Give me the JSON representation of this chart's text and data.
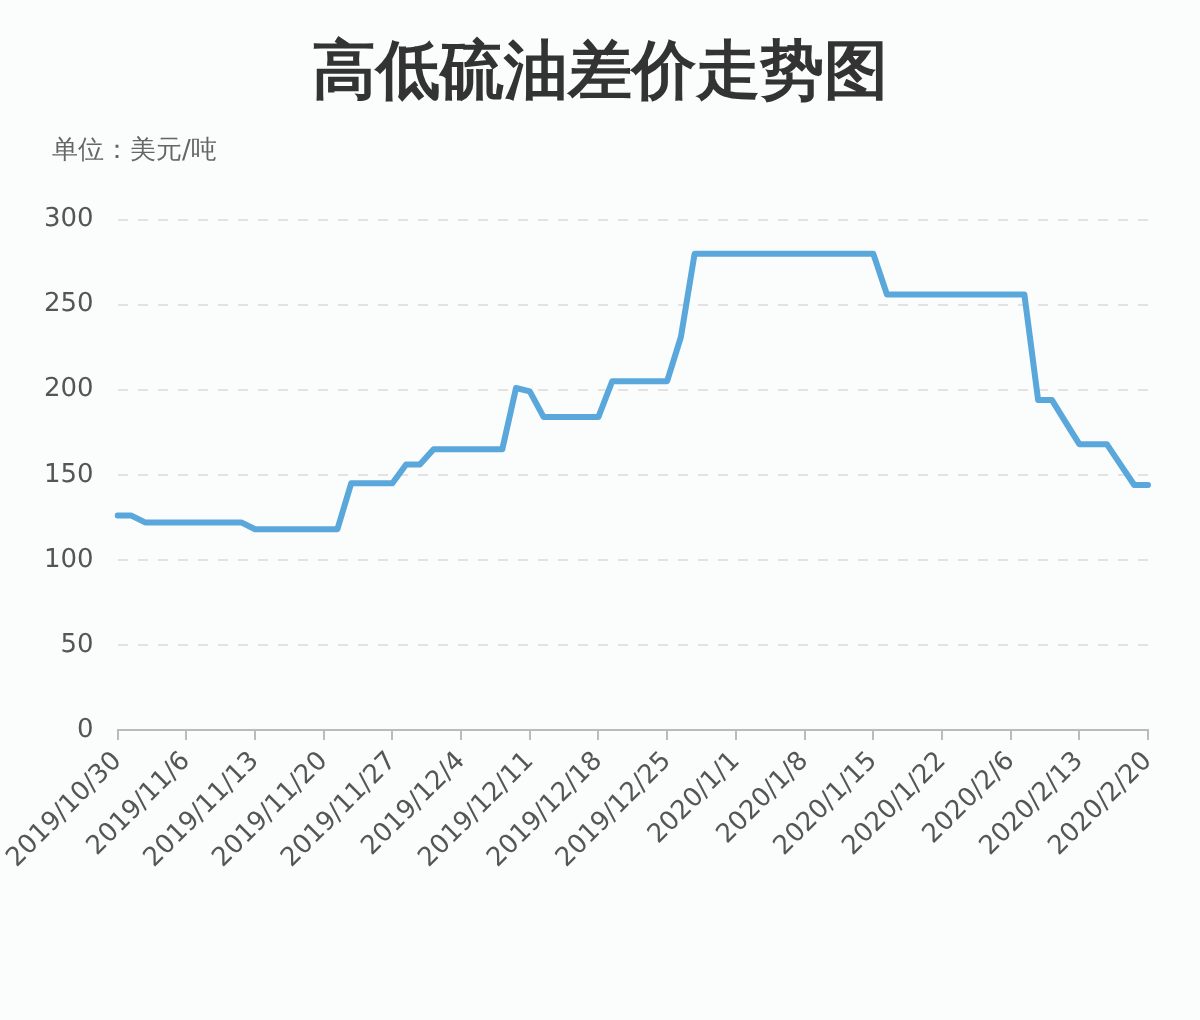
{
  "chart_data": {
    "type": "line",
    "title": "高低硫油差价走势图",
    "ylabel": "单位：美元/吨",
    "categories": [
      "2019/10/30",
      null,
      null,
      null,
      null,
      "2019/11/6",
      null,
      null,
      null,
      null,
      "2019/11/13",
      null,
      null,
      null,
      null,
      "2019/11/20",
      null,
      null,
      null,
      null,
      "2019/11/27",
      null,
      null,
      null,
      null,
      "2019/12/4",
      null,
      null,
      null,
      null,
      "2019/12/11",
      null,
      null,
      null,
      null,
      "2019/12/18",
      null,
      null,
      null,
      null,
      "2019/12/25",
      null,
      null,
      null,
      null,
      "2020/1/1",
      null,
      null,
      null,
      null,
      "2020/1/8",
      null,
      null,
      null,
      null,
      "2020/1/15",
      null,
      null,
      null,
      null,
      "2020/1/22",
      null,
      null,
      null,
      null,
      "2020/2/6",
      null,
      null,
      null,
      null,
      "2020/2/13",
      null,
      null,
      null,
      null,
      "2020/2/20"
    ],
    "series": [
      {
        "color": "#5aa7dc",
        "values": [
          126,
          126,
          122,
          122,
          122,
          122,
          122,
          122,
          122,
          122,
          118,
          118,
          118,
          118,
          118,
          118,
          118,
          145,
          145,
          145,
          145,
          156,
          156,
          165,
          165,
          165,
          165,
          165,
          165,
          201,
          199,
          184,
          184,
          184,
          184,
          184,
          205,
          205,
          205,
          205,
          205,
          231,
          280,
          280,
          280,
          280,
          280,
          280,
          280,
          280,
          280,
          280,
          280,
          280,
          280,
          280,
          256,
          256,
          256,
          256,
          256,
          256,
          256,
          256,
          256,
          256,
          256,
          194,
          194,
          181,
          168,
          168,
          168,
          156,
          144,
          144
        ]
      }
    ],
    "ylim": [
      0,
      300
    ],
    "yticks": [
      0,
      50,
      100,
      150,
      200,
      250,
      300
    ],
    "grid": "y",
    "legend": false,
    "marker": "none",
    "line_style": "solid"
  }
}
